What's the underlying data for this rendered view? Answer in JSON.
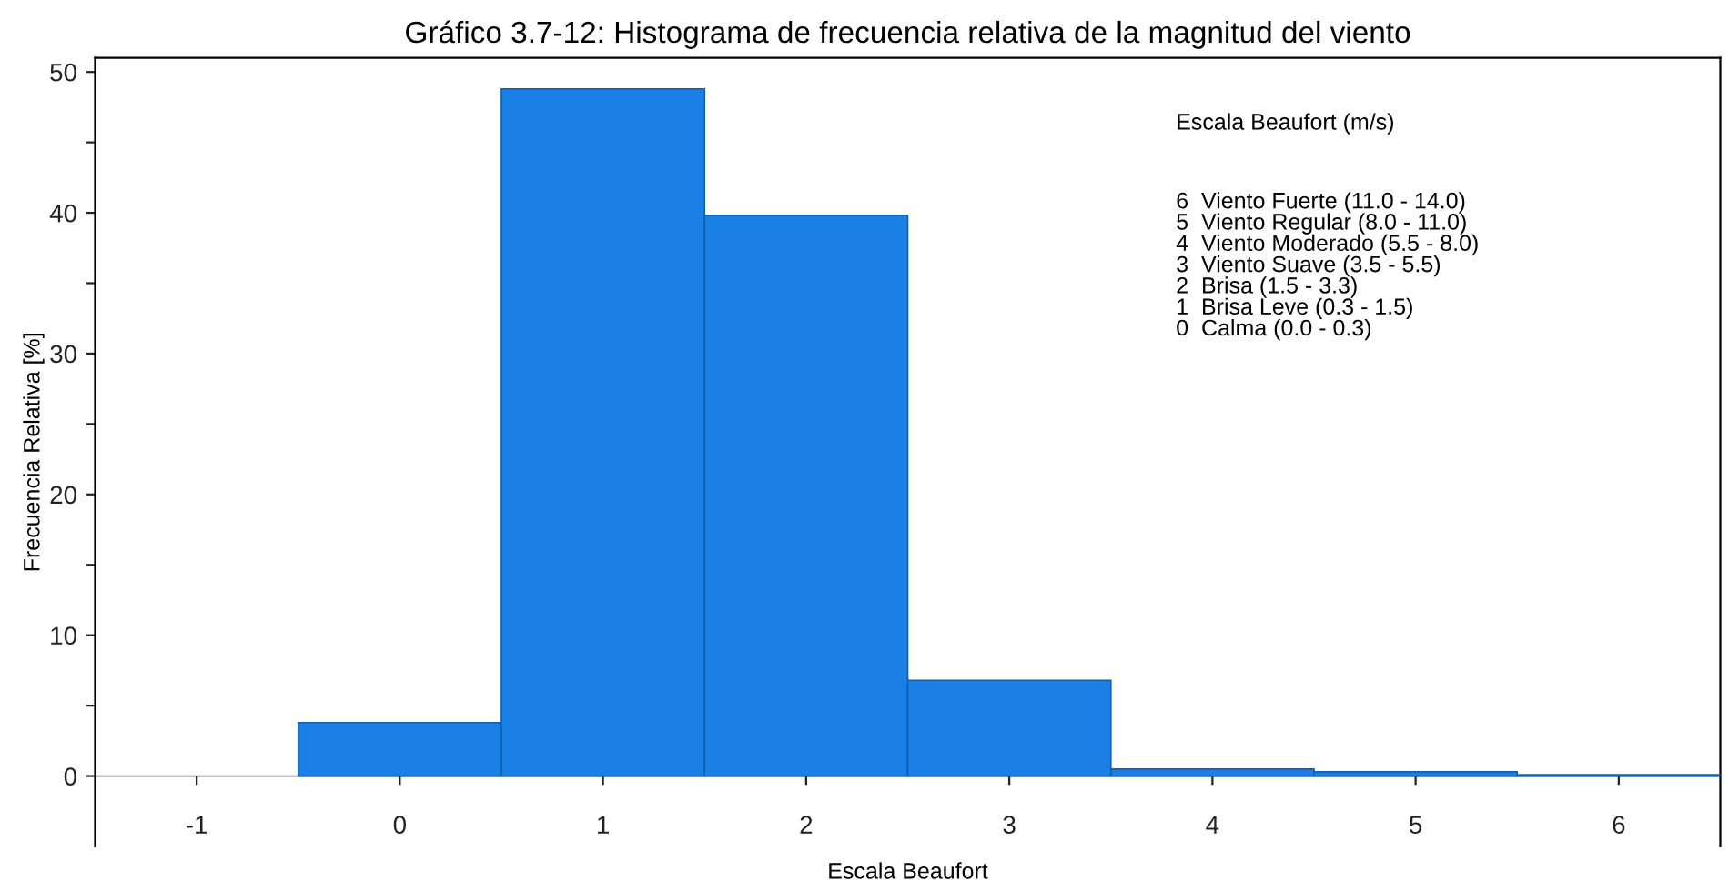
{
  "chart_data": {
    "type": "histogram",
    "title": "Gráfico 3.7-12: Histograma de frecuencia relativa de la magnitud del viento",
    "xlabel": "Escala Beaufort",
    "ylabel": "Frecuencia Relativa [%]",
    "bins": [
      -0.5,
      0.5,
      1.5,
      2.5,
      3.5,
      4.5,
      5.5,
      6.5
    ],
    "values": [
      3.8,
      48.8,
      39.8,
      6.8,
      0.5,
      0.3,
      0.1
    ],
    "color": "#1a80e6",
    "xlim": [
      -1.5,
      6.5
    ],
    "ylim": [
      -5,
      51
    ],
    "xticks": [
      -1,
      0,
      1,
      2,
      3,
      4,
      5,
      6
    ],
    "yticks": [
      0,
      {
        "value": 5,
        "label": null
      },
      10,
      {
        "value": 15,
        "label": null
      },
      20,
      {
        "value": 25,
        "label": null
      },
      30,
      {
        "value": 35,
        "label": null
      },
      40,
      {
        "value": 45,
        "label": null
      },
      50
    ],
    "annotations": [
      "Escala Beaufort (m/s)",
      "6  Viento Fuerte (11.0 - 14.0)\n5  Viento Regular (8.0 - 11.0)\n4  Viento Moderado (5.5 - 8.0)\n3  Viento Suave (3.5 - 5.5)\n2  Brisa (1.5 - 3.3)\n1  Brisa Leve (0.3 - 1.5)\n0  Calma (0.0 - 0.3)"
    ],
    "grid": false
  }
}
